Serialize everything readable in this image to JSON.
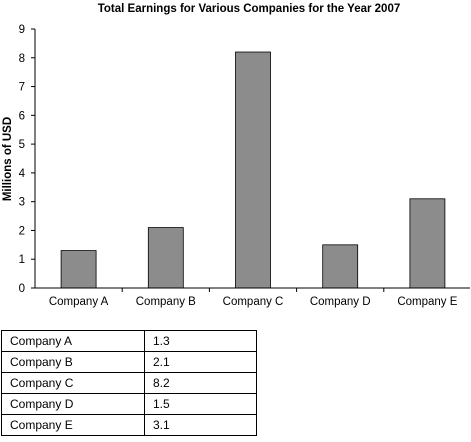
{
  "chart_data": {
    "type": "bar",
    "title": "Total Earnings for Various Companies for the Year 2007",
    "xlabel": "",
    "ylabel": "Millions of USD",
    "categories": [
      "Company A",
      "Company B",
      "Company C",
      "Company D",
      "Company E"
    ],
    "values": [
      1.3,
      2.1,
      8.2,
      1.5,
      3.1
    ],
    "yticks": [
      "0",
      "1",
      "2",
      "3",
      "4",
      "5",
      "6",
      "7",
      "8",
      "9"
    ],
    "ylim": [
      0,
      9
    ],
    "grid": false,
    "legend": "none",
    "bar_color": "#8c8c8d",
    "axis_color": "#000000"
  },
  "table": {
    "rows": [
      {
        "name": "Company A",
        "value": "1.3"
      },
      {
        "name": "Company B",
        "value": "2.1"
      },
      {
        "name": "Company C",
        "value": "8.2"
      },
      {
        "name": "Company D",
        "value": "1.5"
      },
      {
        "name": "Company E",
        "value": "3.1"
      }
    ]
  }
}
